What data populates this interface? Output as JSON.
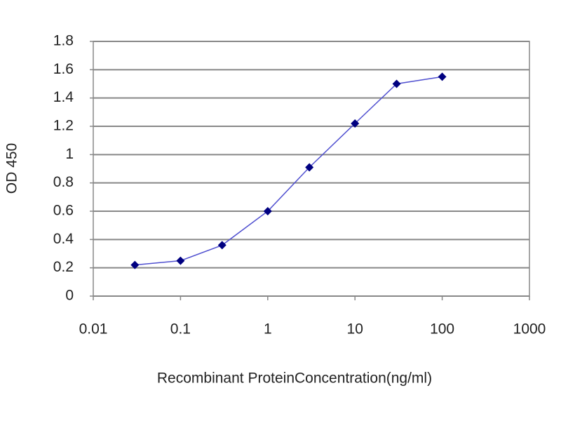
{
  "chart_data": {
    "type": "line",
    "x_label": "Recombinant ProteinConcentration(ng/ml)",
    "y_label": "OD 450",
    "x": [
      0.03,
      0.1,
      0.3,
      1,
      3,
      10,
      30,
      100
    ],
    "series": [
      {
        "name": "OD 450",
        "color": "#000080",
        "line_color": "#5050d0",
        "values": [
          0.22,
          0.25,
          0.36,
          0.6,
          0.91,
          1.22,
          1.5,
          1.55
        ]
      }
    ],
    "x_log": true,
    "xlim": [
      0.01,
      1000
    ],
    "xticks": [
      0.01,
      0.1,
      1,
      10,
      100,
      1000
    ],
    "ylim": [
      0,
      1.8
    ],
    "yticks": [
      0,
      0.2,
      0.4,
      0.6,
      0.8,
      1,
      1.2,
      1.4,
      1.6,
      1.8
    ],
    "grid": true
  }
}
